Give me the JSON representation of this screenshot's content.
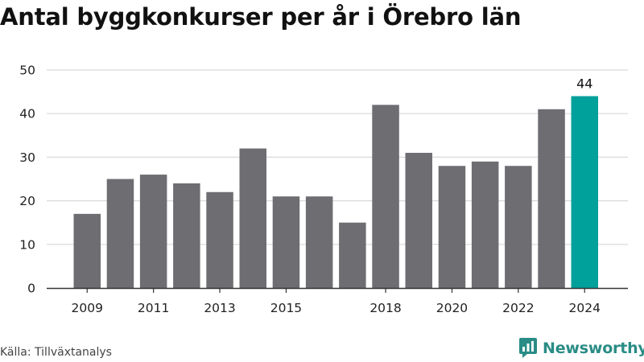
{
  "chart_data": {
    "type": "bar",
    "title": "Antal byggkonkurser per år i Örebro län",
    "categories": [
      "2009",
      "2010",
      "2011",
      "2012",
      "2013",
      "2014",
      "2015",
      "2016",
      "2017",
      "2018",
      "2019",
      "2020",
      "2021",
      "2022",
      "2023",
      "2024"
    ],
    "values": [
      17,
      25,
      26,
      24,
      22,
      32,
      21,
      21,
      15,
      42,
      31,
      28,
      29,
      28,
      41,
      44
    ],
    "x_tick_labels": [
      "2009",
      "2011",
      "2013",
      "2015",
      "2018",
      "2020",
      "2022",
      "2024"
    ],
    "y_ticks": [
      0,
      10,
      20,
      30,
      40,
      50
    ],
    "ylim": [
      0,
      50
    ],
    "xlabel": "",
    "ylabel": "",
    "grid": "horizontal",
    "highlight_category": "2024",
    "highlight_label": "44",
    "colors": {
      "bar": "#6e6d72",
      "highlight": "#00a09b",
      "grid": "#d9d9d9",
      "axis": "#333333"
    }
  },
  "footer": {
    "source": "Källa: Tillväxtanalys"
  },
  "brand": {
    "name": "Newsworthy",
    "icon": "newsworthy-logo-icon",
    "color": "#2a8c86"
  }
}
